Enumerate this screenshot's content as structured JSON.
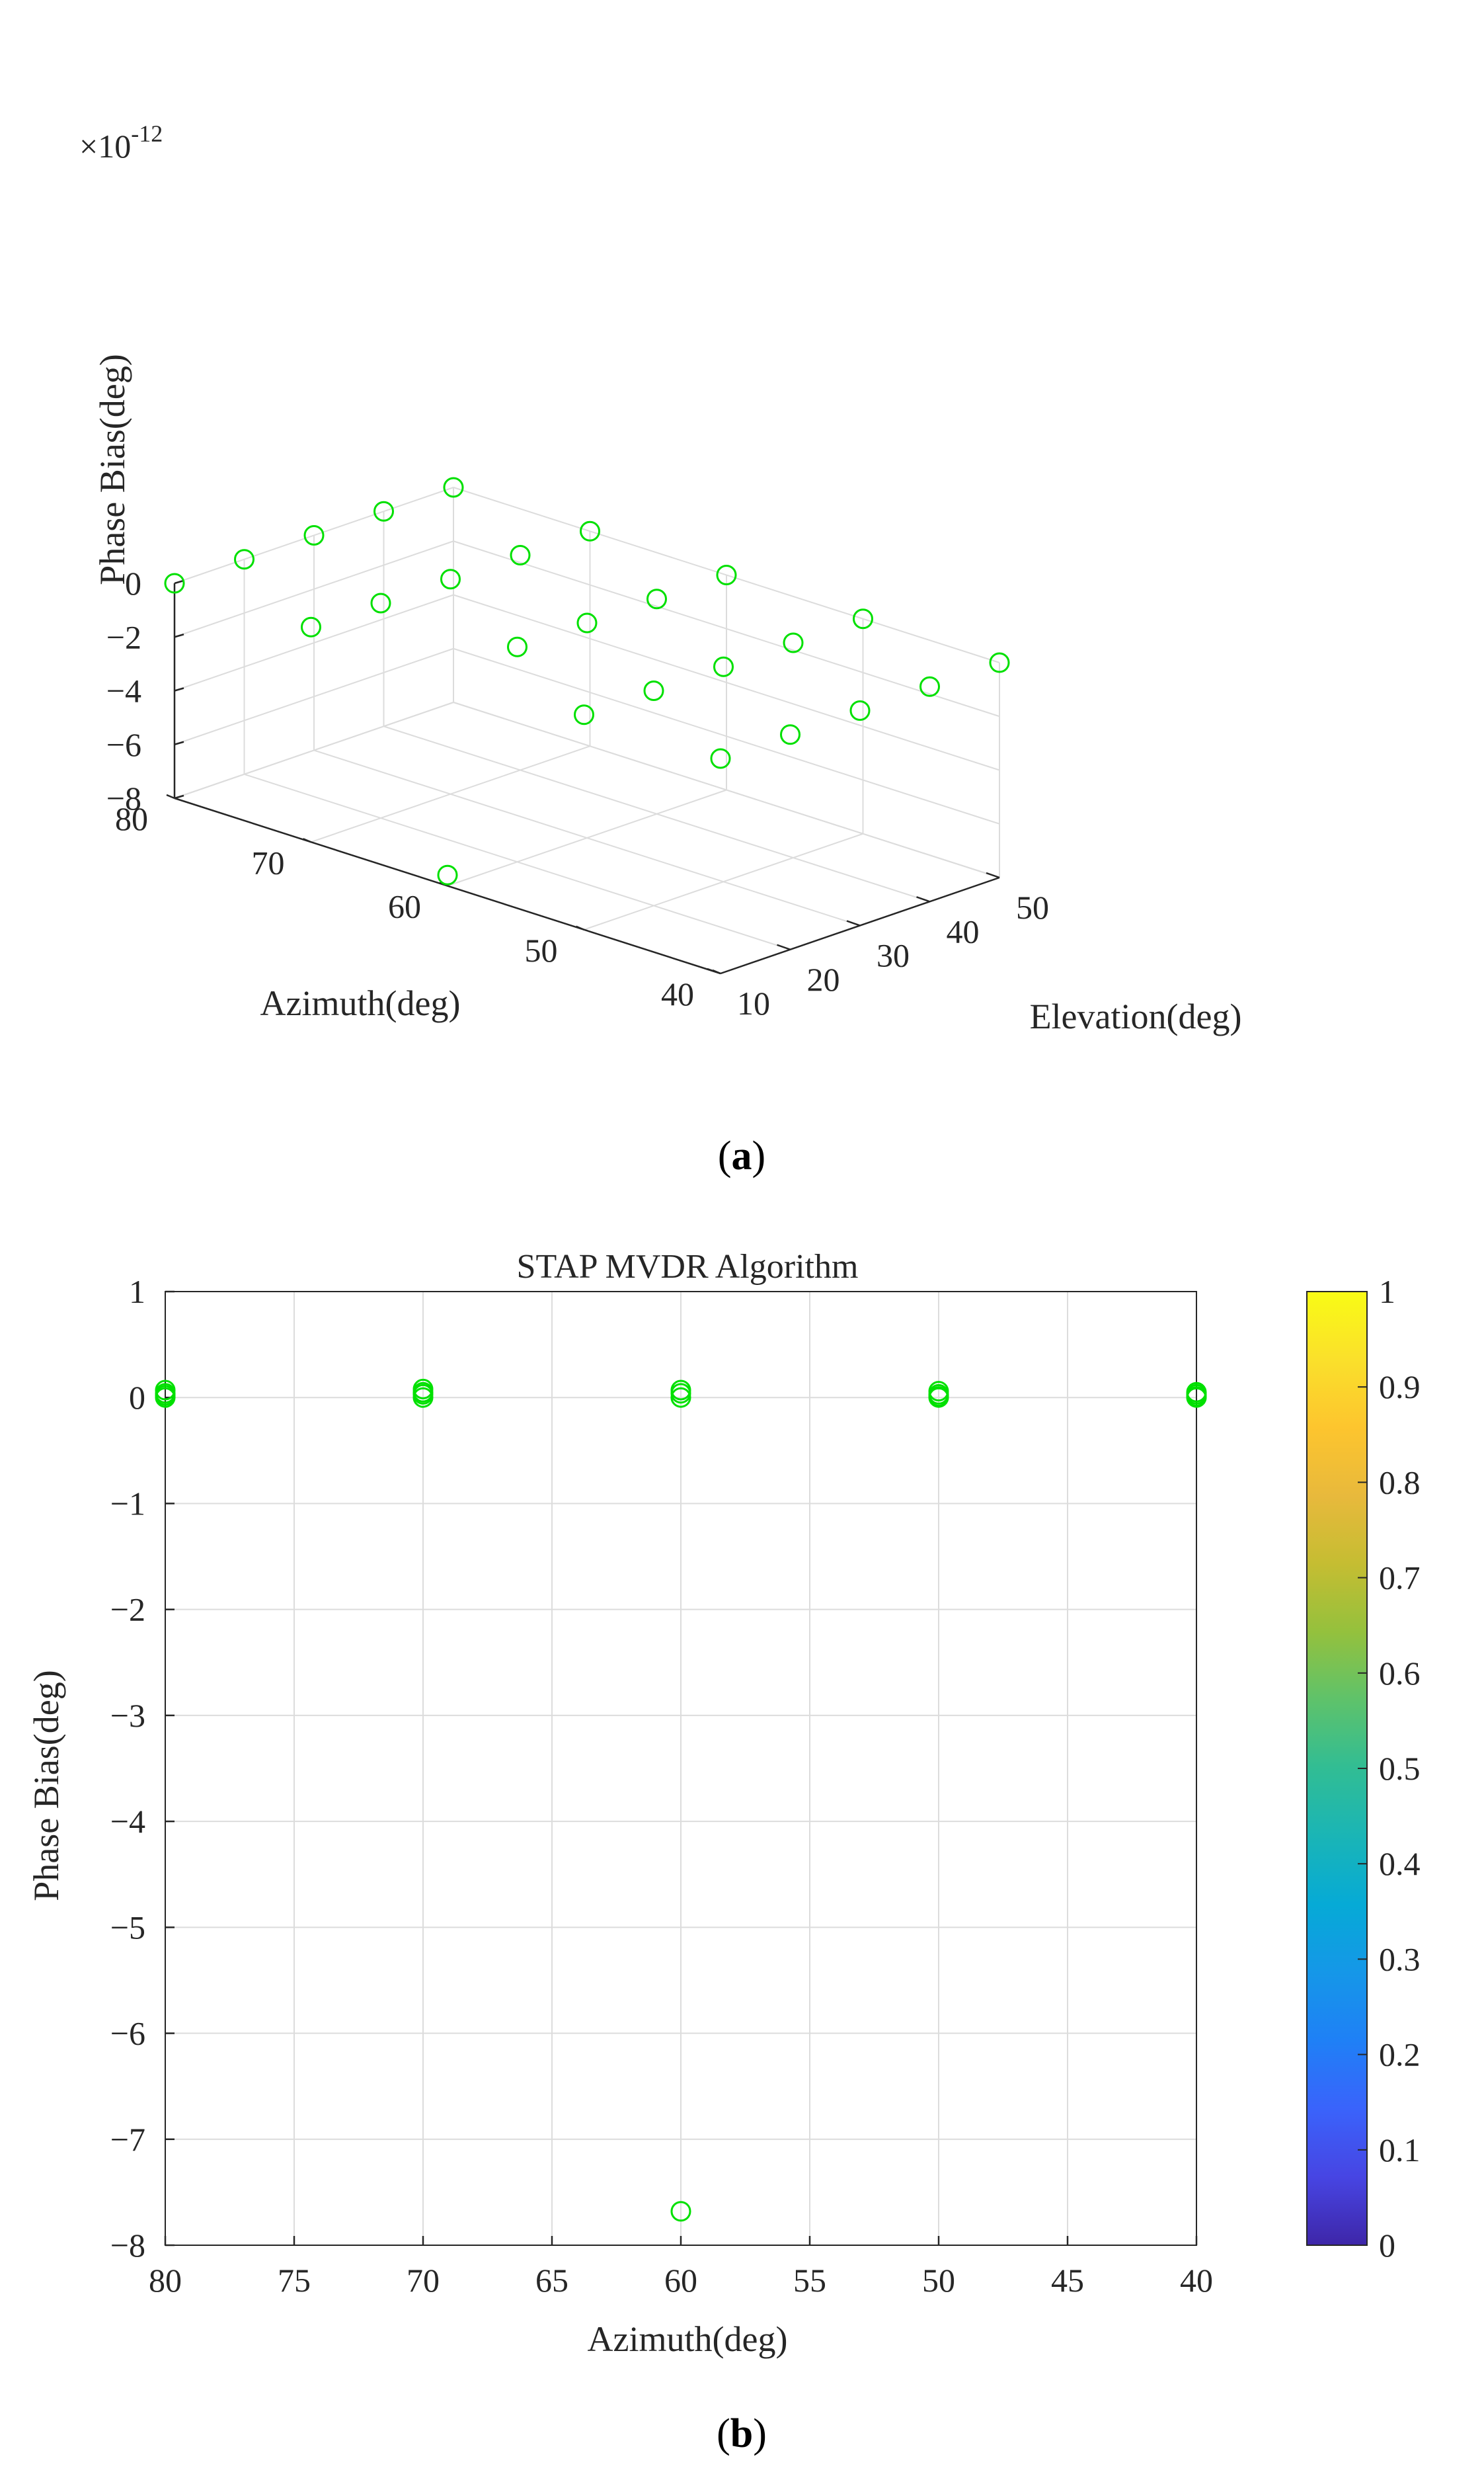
{
  "panel_a": {
    "caption_open": "(",
    "caption_letter": "a",
    "caption_close": ")"
  },
  "panel_b": {
    "caption_open": "(",
    "caption_letter": "b",
    "caption_close": ")"
  },
  "colors": {
    "marker": "#00e000",
    "axis": "#262626",
    "grid": "#dcdcdc",
    "colormap": [
      "#3e26a8",
      "#4745e3",
      "#3a63fb",
      "#1f80f6",
      "#1597e8",
      "#06aad6",
      "#1ab5b6",
      "#31bd94",
      "#5ec26b",
      "#94c13d",
      "#c5bd32",
      "#e8b93c",
      "#fdc52e",
      "#fae02b",
      "#f9fb15"
    ]
  },
  "chart_data": [
    {
      "type": "scatter3d",
      "title": "",
      "xlabel": "Elevation(deg)",
      "ylabel": "Azimuth(deg)",
      "zlabel": "Phase Bias(deg)",
      "z_exponent_label": "×10",
      "z_exponent_power": "-12",
      "xlim": [
        10,
        50
      ],
      "ylim": [
        40,
        80
      ],
      "zlim": [
        -8,
        0
      ],
      "xticks": [
        10,
        20,
        30,
        40,
        50
      ],
      "yticks": [
        40,
        50,
        60,
        70,
        80
      ],
      "zticks": [
        0,
        -2,
        -4,
        -6,
        -8
      ],
      "xtick_labels": [
        "10",
        "20",
        "30",
        "40",
        "50"
      ],
      "ytick_labels": [
        "40",
        "50",
        "60",
        "70",
        "80"
      ],
      "ztick_labels": [
        "0",
        "−2",
        "−4",
        "−6",
        "−8"
      ],
      "marker": "circle",
      "points": [
        {
          "el": 10,
          "az": 80,
          "z": 0
        },
        {
          "el": 20,
          "az": 80,
          "z": 0
        },
        {
          "el": 30,
          "az": 80,
          "z": 0
        },
        {
          "el": 40,
          "az": 80,
          "z": 0
        },
        {
          "el": 50,
          "az": 80,
          "z": 0
        },
        {
          "el": 10,
          "az": 70,
          "z": 0
        },
        {
          "el": 20,
          "az": 70,
          "z": 0
        },
        {
          "el": 30,
          "az": 70,
          "z": 0
        },
        {
          "el": 40,
          "az": 70,
          "z": 0
        },
        {
          "el": 50,
          "az": 70,
          "z": 0
        },
        {
          "el": 10,
          "az": 60,
          "z": -7.6
        },
        {
          "el": 20,
          "az": 60,
          "z": 0
        },
        {
          "el": 30,
          "az": 60,
          "z": 0
        },
        {
          "el": 40,
          "az": 60,
          "z": 0
        },
        {
          "el": 50,
          "az": 60,
          "z": 0
        },
        {
          "el": 10,
          "az": 50,
          "z": 0
        },
        {
          "el": 20,
          "az": 50,
          "z": 0
        },
        {
          "el": 30,
          "az": 50,
          "z": 0
        },
        {
          "el": 40,
          "az": 50,
          "z": 0
        },
        {
          "el": 50,
          "az": 50,
          "z": 0
        },
        {
          "el": 10,
          "az": 40,
          "z": 0
        },
        {
          "el": 20,
          "az": 40,
          "z": 0
        },
        {
          "el": 30,
          "az": 40,
          "z": 0
        },
        {
          "el": 40,
          "az": 40,
          "z": 0
        },
        {
          "el": 50,
          "az": 40,
          "z": 0
        }
      ]
    },
    {
      "type": "scatter",
      "title": "STAP MVDR Algorithm",
      "xlabel": "Azimuth(deg)",
      "ylabel": "Phase Bias(deg)",
      "xlim": [
        80,
        40
      ],
      "ylim": [
        -8,
        1
      ],
      "xticks": [
        80,
        75,
        70,
        65,
        60,
        55,
        50,
        45,
        40
      ],
      "yticks": [
        1,
        0,
        -1,
        -2,
        -3,
        -4,
        -5,
        -6,
        -7,
        -8
      ],
      "xtick_labels": [
        "80",
        "75",
        "70",
        "65",
        "60",
        "55",
        "50",
        "45",
        "40"
      ],
      "ytick_labels": [
        "1",
        "0",
        "−1",
        "−2",
        "−3",
        "−4",
        "−5",
        "−6",
        "−7",
        "−8"
      ],
      "grid": true,
      "marker": "circle",
      "points": [
        {
          "x": 80,
          "y": 0.07
        },
        {
          "x": 80,
          "y": 0.04
        },
        {
          "x": 80,
          "y": 0.02
        },
        {
          "x": 80,
          "y": 0.0
        },
        {
          "x": 70,
          "y": 0.08
        },
        {
          "x": 70,
          "y": 0.05
        },
        {
          "x": 70,
          "y": 0.03
        },
        {
          "x": 70,
          "y": 0.0
        },
        {
          "x": 60,
          "y": 0.07
        },
        {
          "x": 60,
          "y": 0.04
        },
        {
          "x": 60,
          "y": 0.0
        },
        {
          "x": 60,
          "y": -7.68
        },
        {
          "x": 50,
          "y": 0.06
        },
        {
          "x": 50,
          "y": 0.03
        },
        {
          "x": 50,
          "y": 0.01
        },
        {
          "x": 50,
          "y": 0.0
        },
        {
          "x": 40,
          "y": 0.05
        },
        {
          "x": 40,
          "y": 0.03
        },
        {
          "x": 40,
          "y": 0.01
        },
        {
          "x": 40,
          "y": 0.0
        }
      ],
      "colorbar": {
        "range": [
          0,
          1
        ],
        "ticks": [
          "0",
          "0.1",
          "0.2",
          "0.3",
          "0.4",
          "0.5",
          "0.6",
          "0.7",
          "0.8",
          "0.9",
          "1"
        ]
      }
    }
  ]
}
